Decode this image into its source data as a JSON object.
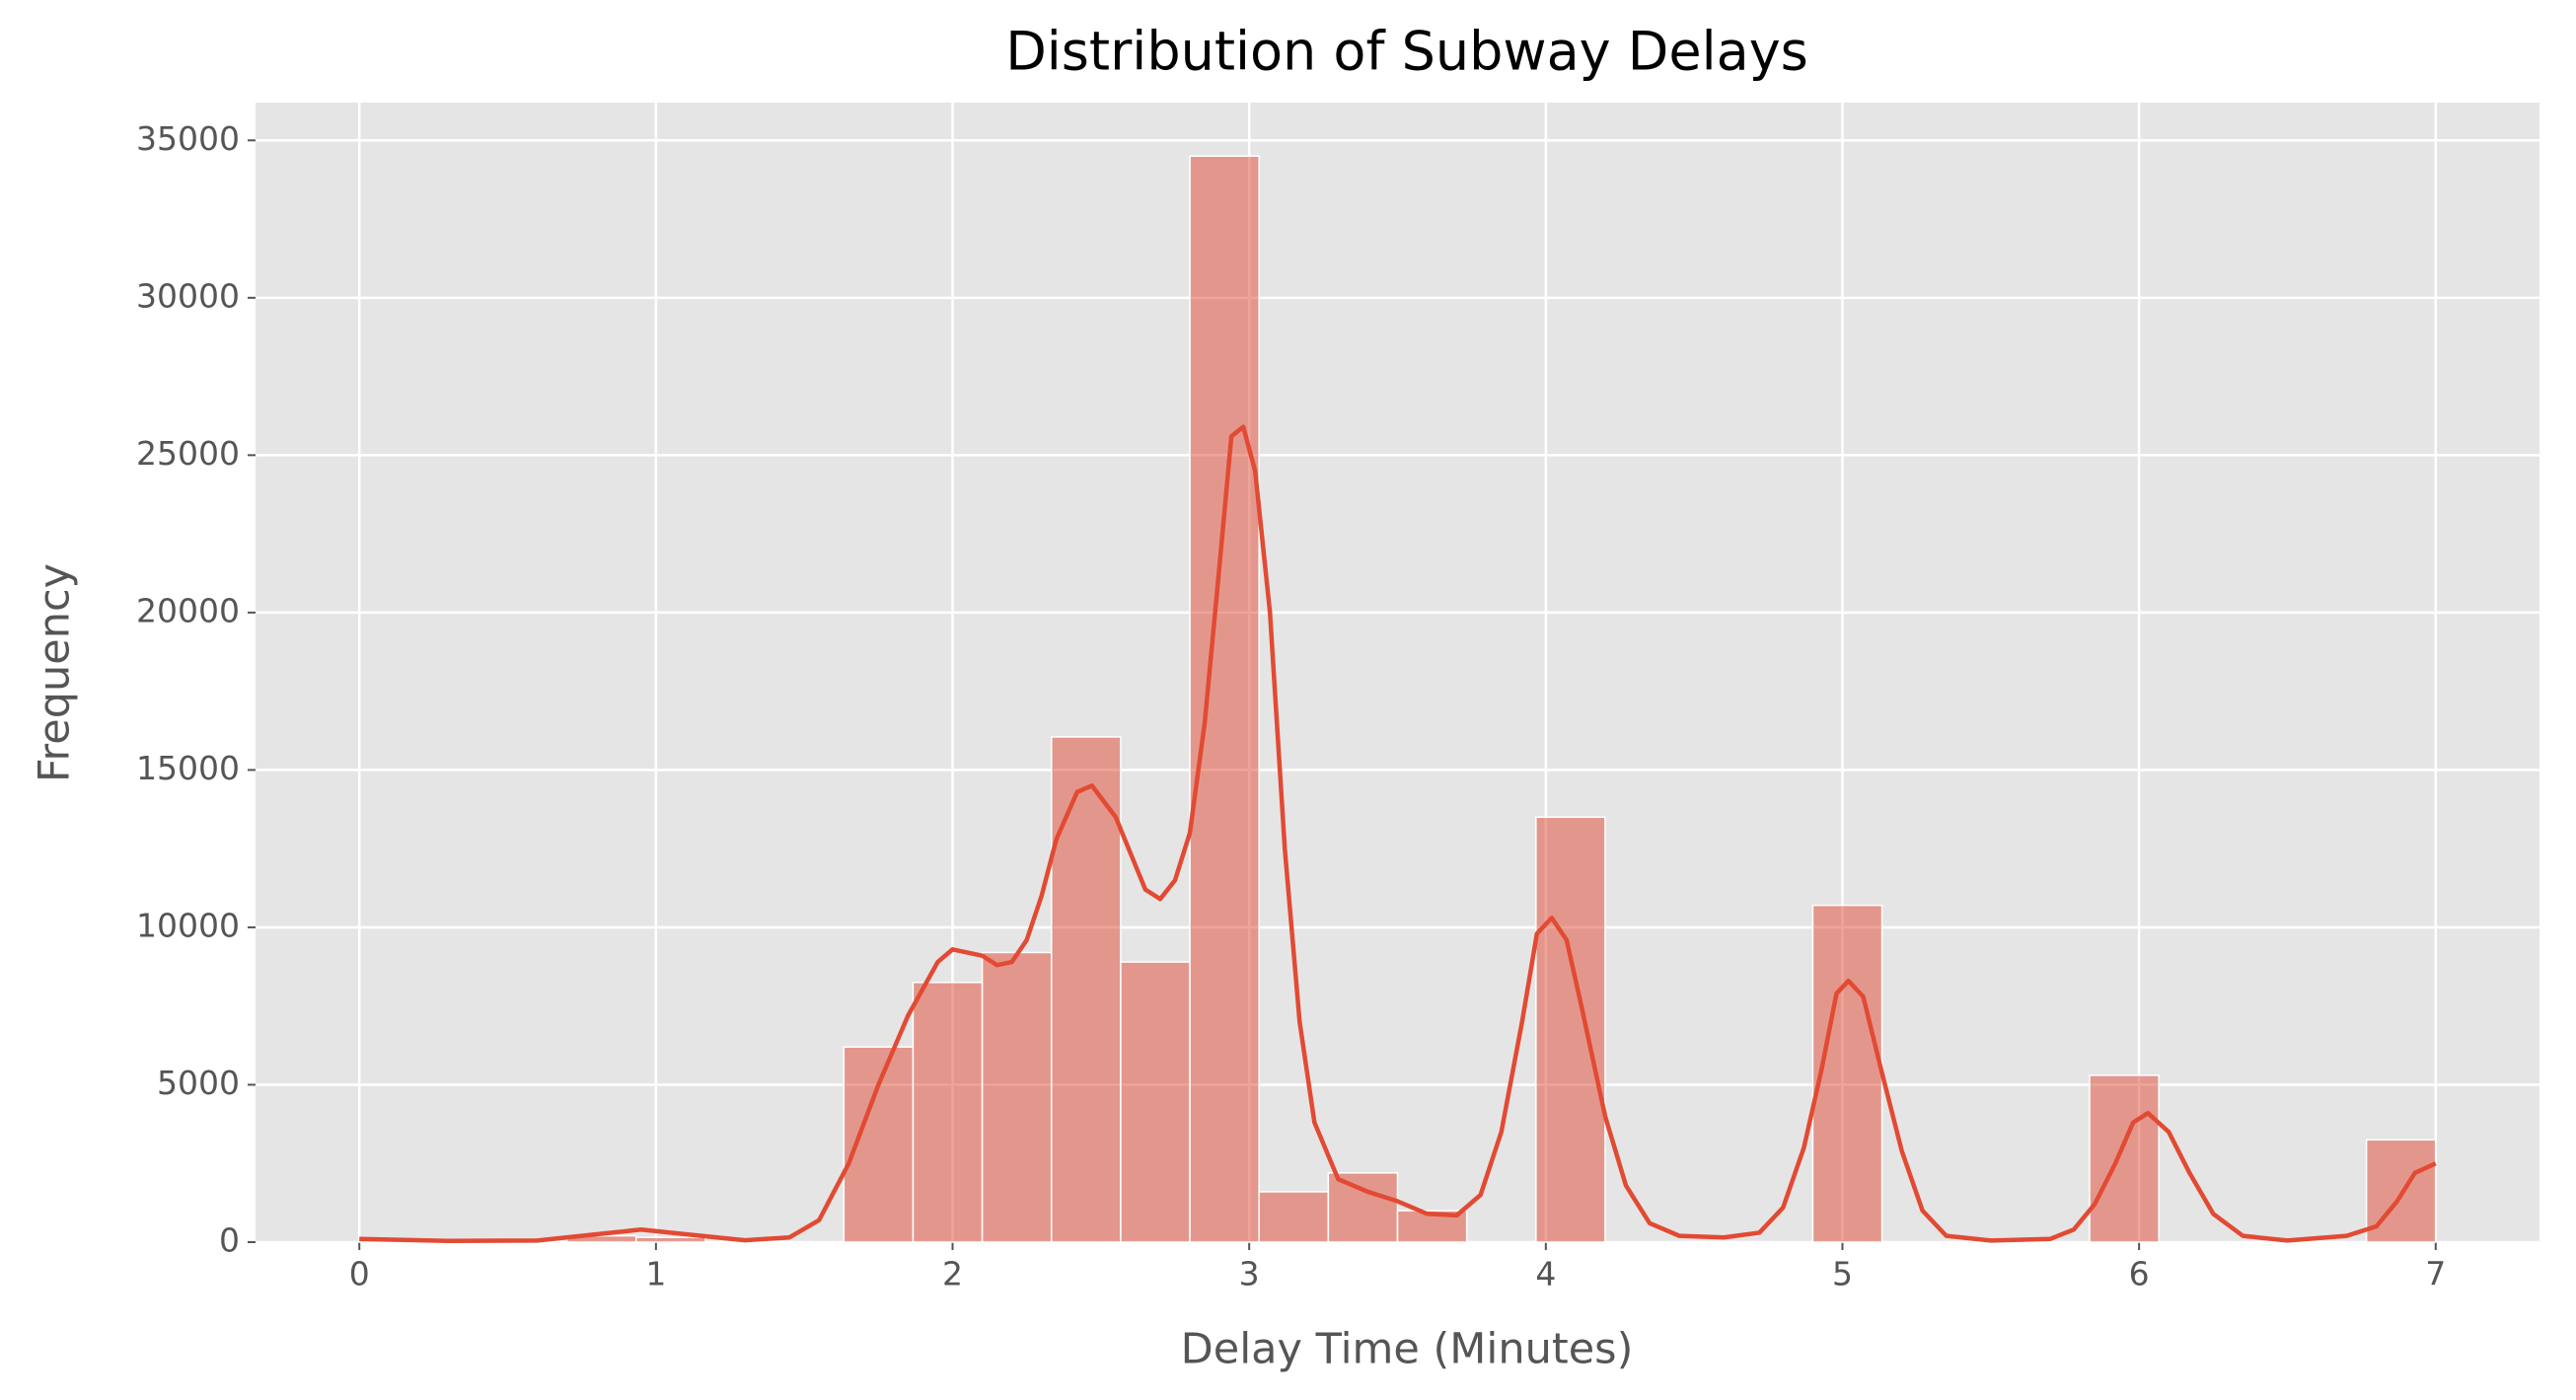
{
  "chart_data": {
    "type": "histogram",
    "title": "Distribution of Subway Delays",
    "x_label": "Delay Time (Minutes)",
    "y_label": "Frequency",
    "bins": [
      0,
      0.2333,
      0.4667,
      0.7,
      0.9333,
      1.1667,
      1.4,
      1.6333,
      1.8667,
      2.1,
      2.3333,
      2.5667,
      2.8,
      3.0333,
      3.2667,
      3.5,
      3.7333,
      3.9667,
      4.2,
      4.4333,
      4.6667,
      4.9,
      5.1333,
      5.3667,
      5.6,
      5.8333,
      6.0667,
      6.3,
      6.5333,
      6.7667,
      7
    ],
    "counts": [
      60,
      0,
      0,
      200,
      150,
      0,
      0,
      6200,
      8250,
      9200,
      16050,
      8900,
      34500,
      1600,
      2200,
      1000,
      0,
      13500,
      0,
      0,
      0,
      10700,
      0,
      0,
      0,
      5300,
      0,
      0,
      0,
      3250
    ],
    "color": "#E24A33",
    "kde": {
      "x": [
        0,
        0.3,
        0.6,
        0.8,
        0.95,
        1.1,
        1.3,
        1.45,
        1.55,
        1.65,
        1.75,
        1.85,
        1.95,
        2.0,
        2.1,
        2.15,
        2.2,
        2.25,
        2.3,
        2.35,
        2.42,
        2.47,
        2.55,
        2.65,
        2.7,
        2.75,
        2.8,
        2.85,
        2.9,
        2.94,
        2.98,
        3.02,
        3.07,
        3.12,
        3.17,
        3.22,
        3.3,
        3.4,
        3.5,
        3.6,
        3.7,
        3.78,
        3.85,
        3.92,
        3.97,
        4.02,
        4.07,
        4.12,
        4.2,
        4.27,
        4.35,
        4.45,
        4.6,
        4.72,
        4.8,
        4.87,
        4.93,
        4.98,
        5.02,
        5.07,
        5.13,
        5.2,
        5.27,
        5.35,
        5.5,
        5.7,
        5.78,
        5.85,
        5.92,
        5.98,
        6.03,
        6.1,
        6.17,
        6.25,
        6.35,
        6.5,
        6.7,
        6.8,
        6.87,
        6.93,
        7.0
      ],
      "values": [
        100,
        40,
        50,
        250,
        400,
        250,
        60,
        150,
        700,
        2500,
        5000,
        7200,
        8900,
        9300,
        9100,
        8800,
        8900,
        9600,
        11000,
        12800,
        14300,
        14500,
        13500,
        11200,
        10900,
        11500,
        13000,
        16500,
        21500,
        25600,
        25900,
        24500,
        20000,
        12500,
        7000,
        3800,
        2000,
        1600,
        1300,
        900,
        850,
        1500,
        3500,
        7000,
        9800,
        10300,
        9600,
        7500,
        4000,
        1800,
        600,
        200,
        150,
        300,
        1100,
        3000,
        5500,
        7900,
        8300,
        7800,
        5500,
        2900,
        1000,
        200,
        50,
        100,
        400,
        1200,
        2500,
        3800,
        4100,
        3500,
        2200,
        900,
        200,
        50,
        200,
        500,
        1300,
        2200,
        2500
      ]
    },
    "xlim": [
      -0.35,
      7.35
    ],
    "ylim": [
      0,
      36200
    ],
    "xticks": [
      0,
      1,
      2,
      3,
      4,
      5,
      6,
      7
    ],
    "yticks": [
      0,
      5000,
      10000,
      15000,
      20000,
      25000,
      30000,
      35000
    ],
    "grid": true
  }
}
